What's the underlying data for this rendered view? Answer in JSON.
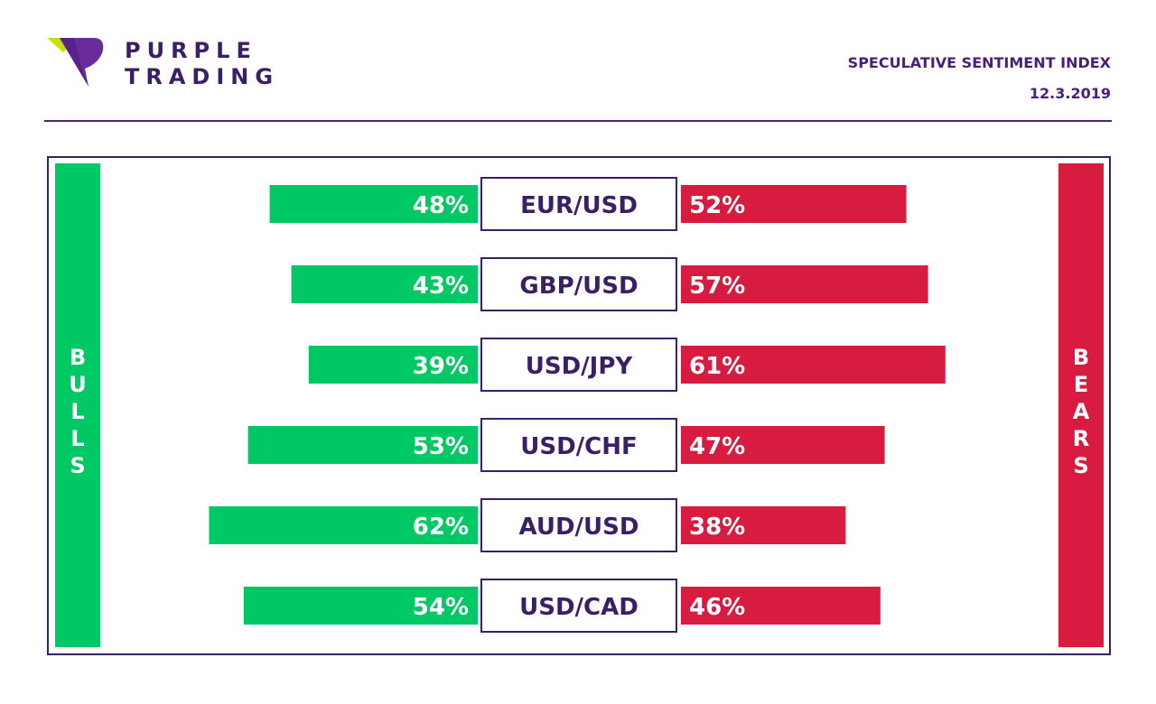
{
  "brand": {
    "line1": "PURPLE",
    "line2": "TRADING",
    "icon": "purple-trading-logo-icon",
    "colors": {
      "purple": "#6a2c9a",
      "lime": "#c8e000"
    }
  },
  "header": {
    "title": "SPECULATIVE SENTIMENT INDEX",
    "date": "12.3.2019"
  },
  "side_labels": {
    "left": "BULLS",
    "right": "BEARS"
  },
  "colors": {
    "bulls": "#00c864",
    "bears": "#d81c40",
    "text": "#3b1f66"
  },
  "chart_data": {
    "type": "bar",
    "categories": [
      "EUR/USD",
      "GBP/USD",
      "USD/JPY",
      "USD/CHF",
      "AUD/USD",
      "USD/CAD"
    ],
    "series": [
      {
        "name": "BULLS",
        "values": [
          48,
          43,
          39,
          53,
          62,
          54
        ],
        "labels": [
          "48%",
          "43%",
          "39%",
          "53%",
          "62%",
          "54%"
        ]
      },
      {
        "name": "BEARS",
        "values": [
          52,
          57,
          61,
          47,
          38,
          46
        ],
        "labels": [
          "52%",
          "57%",
          "61%",
          "47%",
          "38%",
          "46%"
        ]
      }
    ]
  }
}
